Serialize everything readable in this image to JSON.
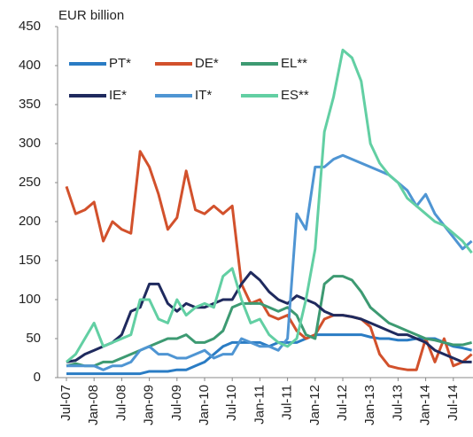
{
  "chart_data": {
    "type": "line",
    "y_label": "EUR billion",
    "categories": [
      "Jul-07",
      null,
      null,
      "Jan-08",
      null,
      null,
      "Jul-08",
      null,
      null,
      "Jan-09",
      null,
      null,
      "Jul-09",
      null,
      null,
      "Jan-10",
      null,
      null,
      "Jul-10",
      null,
      null,
      "Jan-11",
      null,
      null,
      "Jul-11",
      null,
      null,
      "Jan-12",
      null,
      null,
      "Jul-12",
      null,
      null,
      "Jan-13",
      null,
      null,
      "Jul-13",
      null,
      null,
      "Jan-14",
      null,
      null,
      "Jul-14",
      null,
      null
    ],
    "series": [
      {
        "name": "PT*",
        "color": "#2a7cc4",
        "values": [
          5,
          5,
          5,
          5,
          5,
          5,
          5,
          5,
          5,
          8,
          8,
          8,
          10,
          10,
          15,
          20,
          30,
          40,
          45,
          45,
          45,
          45,
          40,
          45,
          45,
          45,
          50,
          55,
          55,
          55,
          55,
          55,
          55,
          52,
          50,
          50,
          48,
          48,
          50,
          50,
          50,
          45,
          40,
          38,
          35
        ]
      },
      {
        "name": "DE*",
        "color": "#d2512c",
        "values": [
          245,
          210,
          215,
          225,
          175,
          200,
          190,
          185,
          290,
          270,
          235,
          190,
          205,
          265,
          215,
          210,
          220,
          210,
          220,
          120,
          95,
          100,
          80,
          75,
          80,
          60,
          50,
          55,
          75,
          80,
          80,
          78,
          75,
          65,
          30,
          15,
          12,
          10,
          10,
          50,
          20,
          50,
          15,
          20,
          30
        ]
      },
      {
        "name": "EL**",
        "color": "#3d9a72",
        "values": [
          15,
          18,
          15,
          15,
          20,
          20,
          25,
          30,
          35,
          40,
          45,
          50,
          50,
          55,
          45,
          45,
          50,
          60,
          90,
          95,
          95,
          95,
          90,
          85,
          90,
          80,
          55,
          50,
          120,
          130,
          130,
          125,
          110,
          90,
          80,
          70,
          65,
          60,
          55,
          50,
          48,
          45,
          42,
          42,
          45
        ]
      },
      {
        "name": "IE*",
        "color": "#1f2a5e",
        "values": [
          20,
          22,
          30,
          35,
          40,
          45,
          55,
          85,
          90,
          120,
          120,
          95,
          85,
          95,
          90,
          90,
          95,
          100,
          100,
          120,
          135,
          125,
          110,
          100,
          95,
          105,
          100,
          95,
          85,
          80,
          80,
          78,
          75,
          70,
          65,
          60,
          55,
          55,
          50,
          45,
          35,
          30,
          25,
          20,
          20
        ]
      },
      {
        "name": "IT*",
        "color": "#4f95d3",
        "values": [
          15,
          15,
          15,
          15,
          10,
          15,
          15,
          20,
          35,
          40,
          30,
          30,
          25,
          25,
          30,
          35,
          25,
          30,
          30,
          50,
          45,
          40,
          40,
          35,
          50,
          210,
          190,
          270,
          270,
          280,
          285,
          280,
          275,
          270,
          265,
          260,
          250,
          240,
          220,
          235,
          210,
          195,
          180,
          165,
          175
        ]
      },
      {
        "name": "ES**",
        "color": "#62cfa3",
        "values": [
          20,
          30,
          50,
          70,
          40,
          45,
          50,
          55,
          100,
          100,
          75,
          70,
          100,
          80,
          90,
          95,
          90,
          130,
          140,
          100,
          70,
          75,
          55,
          45,
          40,
          50,
          100,
          165,
          315,
          360,
          420,
          410,
          380,
          300,
          275,
          260,
          250,
          230,
          220,
          210,
          200,
          195,
          185,
          175,
          160
        ]
      }
    ],
    "ylim": [
      0,
      450
    ],
    "yticks": [
      0,
      50,
      100,
      150,
      200,
      250,
      300,
      350,
      400,
      450
    ]
  }
}
